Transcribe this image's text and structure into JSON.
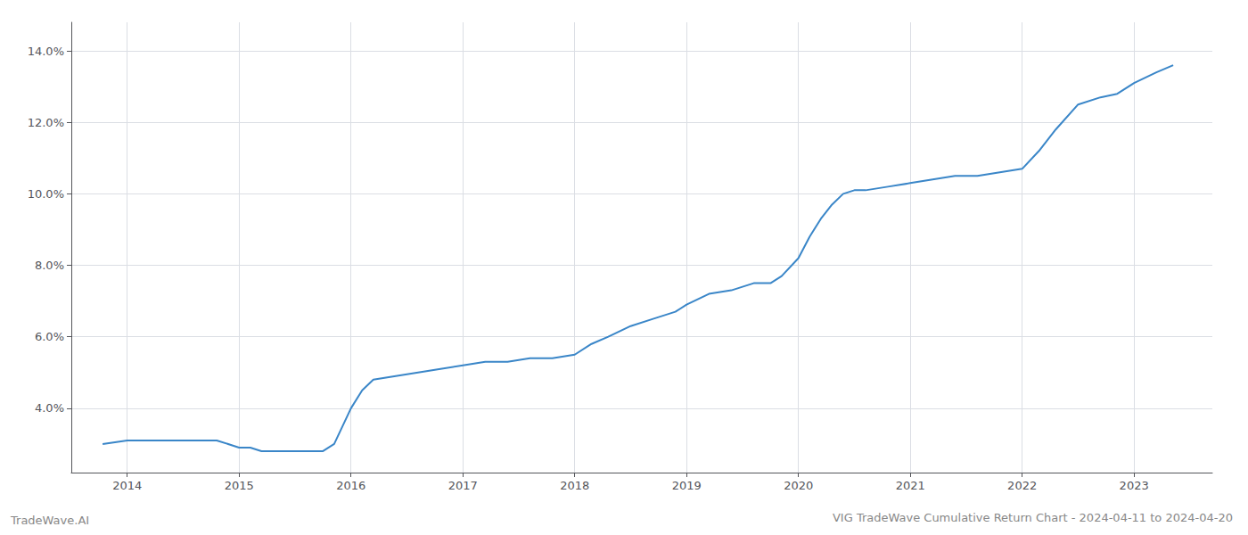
{
  "chart_data": {
    "type": "line",
    "title": "VIG TradeWave Cumulative Return Chart - 2024-04-11 to 2024-04-20",
    "annotations": [
      "TradeWave.AI"
    ],
    "color": "#3a86c8",
    "x": [
      2013.78,
      2014.0,
      2014.2,
      2014.4,
      2014.6,
      2014.8,
      2015.0,
      2015.1,
      2015.2,
      2015.3,
      2015.5,
      2015.6,
      2015.75,
      2015.85,
      2016.0,
      2016.1,
      2016.2,
      2016.4,
      2016.6,
      2016.8,
      2017.0,
      2017.2,
      2017.4,
      2017.6,
      2017.8,
      2018.0,
      2018.15,
      2018.3,
      2018.5,
      2018.7,
      2018.9,
      2019.0,
      2019.2,
      2019.4,
      2019.5,
      2019.6,
      2019.75,
      2019.85,
      2020.0,
      2020.1,
      2020.2,
      2020.3,
      2020.4,
      2020.5,
      2020.6,
      2020.8,
      2021.0,
      2021.2,
      2021.4,
      2021.6,
      2021.8,
      2022.0,
      2022.15,
      2022.3,
      2022.5,
      2022.7,
      2022.85,
      2023.0,
      2023.2,
      2023.35
    ],
    "values": [
      0.03,
      0.031,
      0.031,
      0.031,
      0.031,
      0.031,
      0.029,
      0.029,
      0.028,
      0.028,
      0.028,
      0.028,
      0.028,
      0.03,
      0.04,
      0.045,
      0.048,
      0.049,
      0.05,
      0.051,
      0.052,
      0.053,
      0.053,
      0.054,
      0.054,
      0.055,
      0.058,
      0.06,
      0.063,
      0.065,
      0.067,
      0.069,
      0.072,
      0.073,
      0.074,
      0.075,
      0.075,
      0.077,
      0.082,
      0.088,
      0.093,
      0.097,
      0.1,
      0.101,
      0.101,
      0.102,
      0.103,
      0.104,
      0.105,
      0.105,
      0.106,
      0.107,
      0.112,
      0.118,
      0.125,
      0.127,
      0.128,
      0.131,
      0.134,
      0.136
    ],
    "xlim": [
      2013.5,
      2023.7
    ],
    "ylim": [
      0.022,
      0.148
    ],
    "xticks": [
      2014,
      2015,
      2016,
      2017,
      2018,
      2019,
      2020,
      2021,
      2022,
      2023
    ],
    "yticks": [
      {
        "value": 0.04,
        "label": "4.0%"
      },
      {
        "value": 0.06,
        "label": "6.0%"
      },
      {
        "value": 0.08,
        "label": "8.0%"
      },
      {
        "value": 0.1,
        "label": "10.0%"
      },
      {
        "value": 0.12,
        "label": "12.0%"
      },
      {
        "value": 0.14,
        "label": "14.0%"
      }
    ],
    "grid": true
  }
}
